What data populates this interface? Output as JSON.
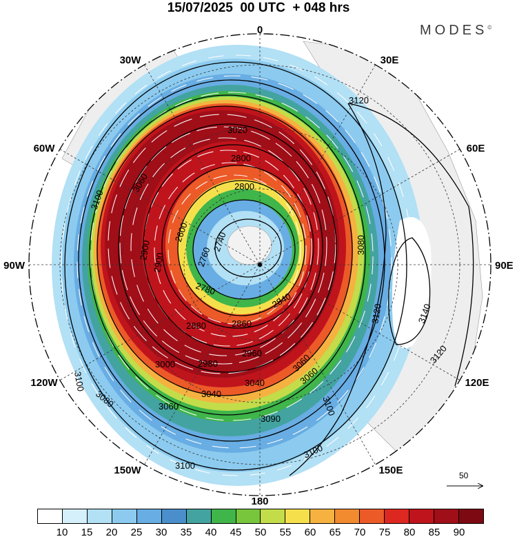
{
  "title": "15/07/2025  00 UTC  + 048 hrs",
  "brand": "MODES",
  "brand_mark": "©",
  "longitude_labels": [
    "0",
    "30E",
    "60E",
    "90E",
    "120E",
    "150E",
    "180",
    "150W",
    "120W",
    "90W",
    "60W",
    "30W"
  ],
  "contour_labels": [
    {
      "text": "2600"
    },
    {
      "text": "2740"
    },
    {
      "text": "2760"
    },
    {
      "text": "2780"
    },
    {
      "text": "2800"
    },
    {
      "text": "2840"
    },
    {
      "text": "2860"
    },
    {
      "text": "2880"
    },
    {
      "text": "2900"
    },
    {
      "text": "2960"
    },
    {
      "text": "2980"
    },
    {
      "text": "3000"
    },
    {
      "text": "3020"
    },
    {
      "text": "3040"
    },
    {
      "text": "3040"
    },
    {
      "text": "3060"
    },
    {
      "text": "3060"
    },
    {
      "text": "3060"
    },
    {
      "text": "3080"
    },
    {
      "text": "3080"
    },
    {
      "text": "3090"
    },
    {
      "text": "3100"
    },
    {
      "text": "3100"
    },
    {
      "text": "3100"
    },
    {
      "text": "3100"
    },
    {
      "text": "3100"
    },
    {
      "text": "3120"
    },
    {
      "text": "3120"
    },
    {
      "text": "3120"
    },
    {
      "text": "3140"
    },
    {
      "text": "2800"
    },
    {
      "text": "2900"
    },
    {
      "text": "3060"
    }
  ],
  "wind_scale": {
    "value": "50"
  },
  "colorbar": {
    "colors": [
      "#ffffff",
      "#d6f0fb",
      "#b2e0f5",
      "#8ccbef",
      "#68ade3",
      "#4a8fcc",
      "#43a3a0",
      "#3fb54a",
      "#78c63c",
      "#c3dc4a",
      "#f5e04c",
      "#f5b240",
      "#f28a30",
      "#ec5a28",
      "#dc2820",
      "#c0141c",
      "#a00e18",
      "#7d0a12"
    ],
    "ticks": [
      "10",
      "15",
      "20",
      "25",
      "30",
      "35",
      "40",
      "45",
      "50",
      "55",
      "60",
      "65",
      "70",
      "75",
      "80",
      "85",
      "90"
    ]
  }
}
